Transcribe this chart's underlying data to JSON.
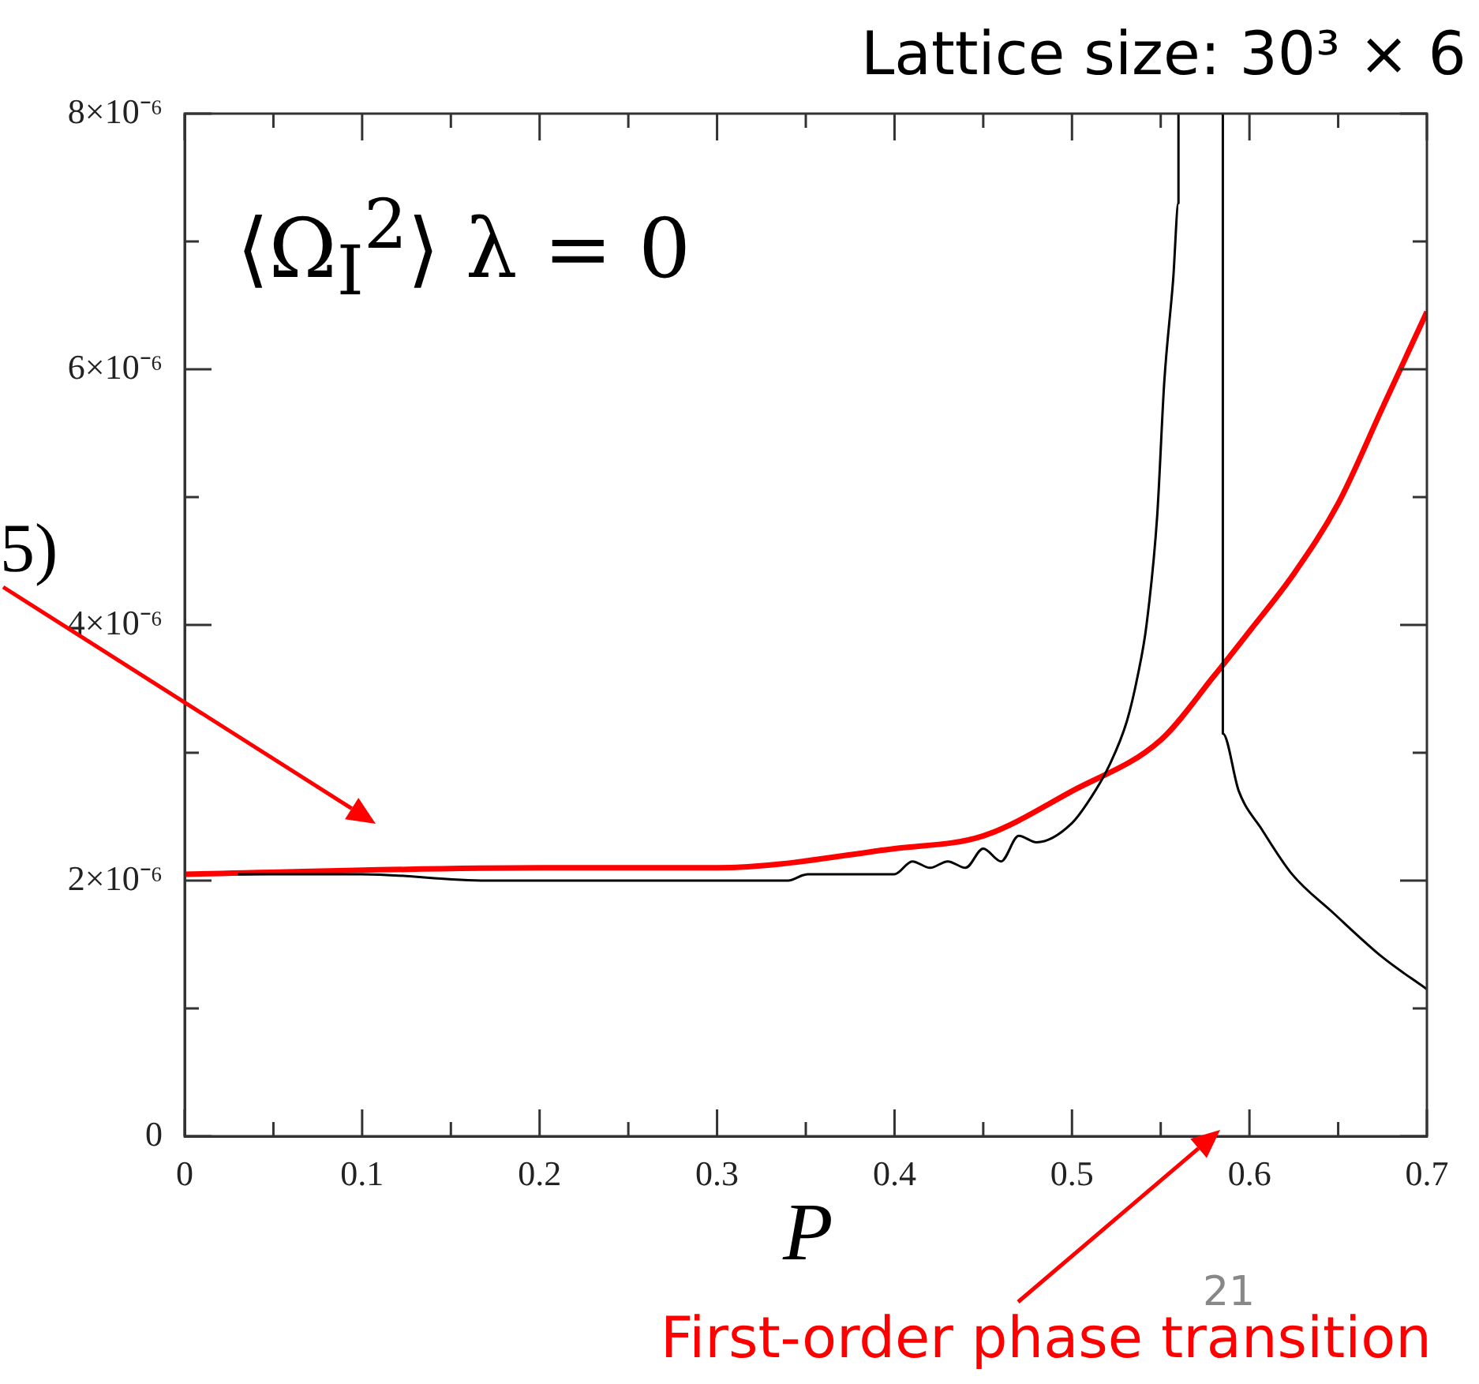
{
  "chart_data": {
    "type": "line",
    "title": "Lattice size: 30³ × 6",
    "xlabel": "P",
    "annotations": [
      "⟨Ω$_{I}$$^{2}$⟩   λ = 0",
      "5)",
      "First-order phase transition",
      "21"
    ],
    "series": [
      {
        "color": "#000000",
        "x": [
          0.03,
          0.1,
          0.17,
          0.2,
          0.34,
          0.351,
          0.39,
          0.4,
          0.41,
          0.42,
          0.43,
          0.44,
          0.45,
          0.46,
          0.47,
          0.48,
          0.5,
          0.513,
          0.521,
          0.531,
          0.537,
          0.542,
          0.548,
          0.552,
          0.557,
          0.56,
          0.56
        ],
        "values": [
          2.05e-06,
          2.05e-06,
          2e-06,
          2e-06,
          2e-06,
          2.05e-06,
          2.05e-06,
          2.05e-06,
          2.15e-06,
          2.1e-06,
          2.15e-06,
          2.1e-06,
          2.25e-06,
          2.15e-06,
          2.35e-06,
          2.3e-06,
          2.45e-06,
          2.7e-06,
          2.9e-06,
          3.25e-06,
          3.6e-06,
          4e-06,
          4.85e-06,
          5.9e-06,
          6.7e-06,
          7.3e-06,
          8e-06
        ]
      },
      {
        "color": "#000000",
        "x": [
          0.585,
          0.585,
          0.594,
          0.607,
          0.624,
          0.647,
          0.675,
          0.7
        ],
        "values": [
          8e-06,
          3.15e-06,
          2.7e-06,
          2.4e-06,
          2.05e-06,
          1.75e-06,
          1.4e-06,
          1.15e-06
        ]
      },
      {
        "color": "#ff0000",
        "x": [
          0,
          0.2,
          0.3,
          0.4,
          0.45,
          0.5,
          0.55,
          0.58,
          0.6,
          0.625,
          0.65,
          0.675,
          0.7
        ],
        "values": [
          2.05e-06,
          2.1e-06,
          2.1e-06,
          2.25e-06,
          2.35e-06,
          2.7e-06,
          3.1e-06,
          3.6e-06,
          3.95e-06,
          4.4e-06,
          4.95e-06,
          5.7e-06,
          6.45e-06
        ]
      }
    ],
    "xlim": [
      0,
      0.7
    ],
    "xticks": [
      0,
      {
        "value": 0.05,
        "label": null
      },
      0.1,
      {
        "value": 0.15,
        "label": null
      },
      0.2,
      {
        "value": 0.25,
        "label": null
      },
      0.3,
      {
        "value": 0.35,
        "label": null
      },
      0.4,
      {
        "value": 0.45,
        "label": null
      },
      0.5,
      {
        "value": 0.55,
        "label": null
      },
      0.6,
      {
        "value": 0.65,
        "label": null
      },
      0.7
    ],
    "ylim": [
      0,
      8e-06
    ],
    "yticks": [
      {
        "value": 0,
        "label": "0"
      },
      {
        "value": 1e-06,
        "label": null
      },
      {
        "value": 2e-06,
        "label": "2×10⁻⁶"
      },
      {
        "value": 3e-06,
        "label": null
      },
      {
        "value": 4e-06,
        "label": "4×10⁻⁶"
      },
      {
        "value": 5e-06,
        "label": null
      },
      {
        "value": 6e-06,
        "label": "6×10⁻⁶"
      },
      {
        "value": 7e-06,
        "label": null
      },
      {
        "value": 8e-06,
        "label": "8×10⁻⁶"
      }
    ],
    "grid": false,
    "legend": false,
    "marker": "none",
    "line_style": "solid"
  }
}
